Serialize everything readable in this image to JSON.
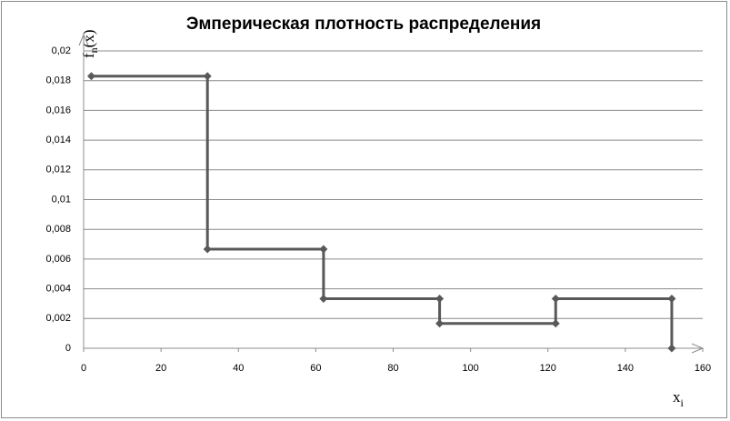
{
  "chart_data": {
    "type": "line",
    "title": "Эмперическая плотность распределения",
    "y_label": [
      "f",
      "n",
      "(x)"
    ],
    "x_label": [
      "x",
      "i"
    ],
    "x": [
      2,
      32,
      32,
      62,
      62,
      92,
      92,
      122,
      122,
      152,
      152
    ],
    "values": [
      0.0183,
      0.0183,
      0.00667,
      0.00667,
      0.00333,
      0.00333,
      0.00167,
      0.00167,
      0.00333,
      0.00333,
      0
    ],
    "color": "#595959",
    "xlim": [
      0,
      160
    ],
    "xticks": [
      0,
      20,
      40,
      60,
      80,
      100,
      120,
      140,
      160
    ],
    "ylim": [
      0,
      0.02
    ],
    "yticks": [
      0,
      {
        "value": 0.002,
        "label": "0,002"
      },
      {
        "value": 0.004,
        "label": "0,004"
      },
      {
        "value": 0.006,
        "label": "0,006"
      },
      {
        "value": 0.008,
        "label": "0,008"
      },
      {
        "value": 0.01,
        "label": "0,01"
      },
      {
        "value": 0.012,
        "label": "0,012"
      },
      {
        "value": 0.014,
        "label": "0,014"
      },
      {
        "value": 0.016,
        "label": "0,016"
      },
      {
        "value": 0.018,
        "label": "0,018"
      },
      {
        "value": 0.02,
        "label": "0,02"
      }
    ],
    "grid": true
  }
}
